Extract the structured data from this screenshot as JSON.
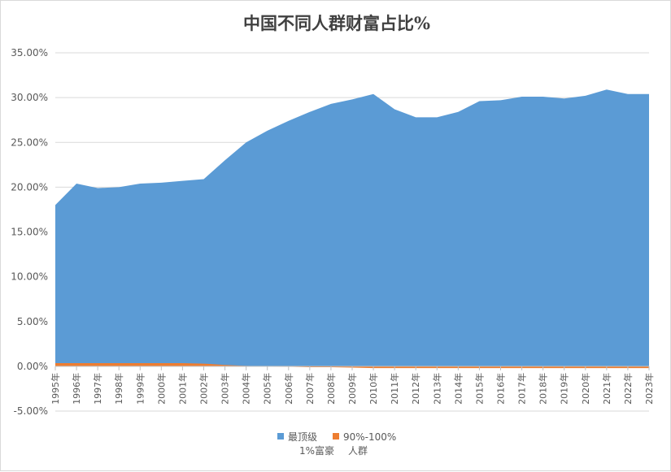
{
  "chart_data": {
    "type": "area",
    "title": "中国不同人群财富占比%",
    "xlabel": "",
    "ylabel": "",
    "ylim": [
      -5,
      35
    ],
    "yticks": [
      35,
      30,
      25,
      20,
      15,
      10,
      5,
      0,
      -5
    ],
    "ytick_labels": [
      "35.00%",
      "30.00%",
      "25.00%",
      "20.00%",
      "15.00%",
      "10.00%",
      "5.00%",
      "0.00%",
      "-5.00%"
    ],
    "grid": true,
    "legend_position": "bottom",
    "categories": [
      "1995年",
      "1996年",
      "1997年",
      "1998年",
      "1999年",
      "2000年",
      "2001年",
      "2002年",
      "2003年",
      "2004年",
      "2005年",
      "2006年",
      "2007年",
      "2008年",
      "2009年",
      "2010年",
      "2011年",
      "2012年",
      "2013年",
      "2014年",
      "2015年",
      "2016年",
      "2017年",
      "2018年",
      "2019年",
      "2020年",
      "2021年",
      "2022年",
      "2023年"
    ],
    "series": [
      {
        "name_lines": [
          "最顶级",
          "1%富豪"
        ],
        "color": "#5b9bd5",
        "values": [
          18.0,
          20.4,
          19.9,
          20.0,
          20.4,
          20.5,
          20.7,
          20.9,
          23.0,
          25.0,
          26.3,
          27.4,
          28.4,
          29.3,
          29.8,
          30.4,
          28.7,
          27.8,
          27.8,
          28.4,
          29.6,
          29.7,
          30.1,
          30.1,
          29.9,
          30.2,
          30.9,
          30.4,
          30.4
        ]
      },
      {
        "name_lines": [
          "90%-100%",
          "人群"
        ],
        "color": "#ed7d31",
        "values": [
          0.35,
          0.35,
          0.35,
          0.35,
          0.35,
          0.35,
          0.35,
          0.3,
          0.15,
          0.05,
          0.0,
          -0.05,
          -0.1,
          -0.1,
          -0.15,
          -0.2,
          -0.2,
          -0.2,
          -0.2,
          -0.2,
          -0.2,
          -0.2,
          -0.2,
          -0.2,
          -0.2,
          -0.2,
          -0.2,
          -0.2,
          -0.2
        ]
      }
    ]
  }
}
